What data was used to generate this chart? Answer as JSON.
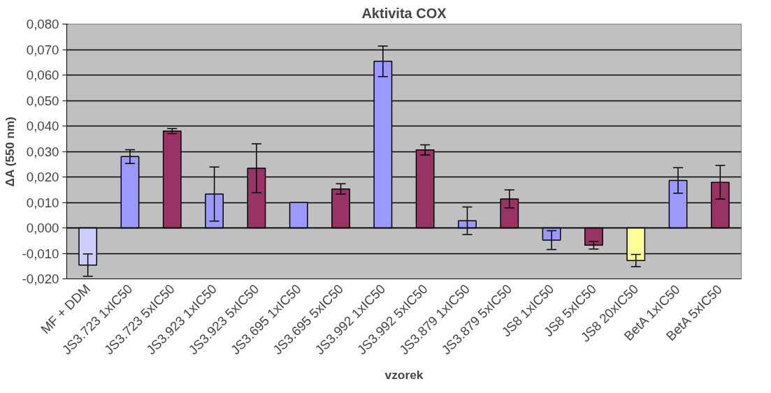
{
  "chart_data": {
    "type": "bar",
    "title": "Aktivita COX",
    "xlabel": "vzorek",
    "ylabel": "ΔA (550 nm)",
    "categories": [
      "MF + DDM",
      "JS3.723 1xIC50",
      "JS3.723 5xIC50",
      "JS3.923 1xIC50",
      "JS3.923 5xIC50",
      "JS3.695 1xIC50",
      "JS3.695 5xIC50",
      "JS3.992 1xIC50",
      "JS3.992 5xIC50",
      "JS3.879 1xIC50",
      "JS3.879 5xIC50",
      "JS8 1xIC50",
      "JS8 5xIC50",
      "JS8 20xIC50",
      "BetA 1xIC50",
      "BetA 5xIC50"
    ],
    "values": [
      -0.0146,
      0.028,
      0.038,
      0.0133,
      0.0234,
      0.01,
      0.0153,
      0.0654,
      0.0306,
      0.0028,
      0.0114,
      -0.0048,
      -0.0068,
      -0.0128,
      0.0186,
      0.0179
    ],
    "errors": [
      0.0044,
      0.0027,
      0.001,
      0.0106,
      0.0096,
      null,
      0.002,
      0.006,
      0.002,
      0.0054,
      0.0035,
      0.0037,
      0.0015,
      0.0024,
      0.005,
      0.0066
    ],
    "colors": [
      "#ccccff",
      "#9999ff",
      "#993366",
      "#9999ff",
      "#993366",
      "#9999ff",
      "#993366",
      "#9999ff",
      "#993366",
      "#9999ff",
      "#993366",
      "#9999ff",
      "#993366",
      "#ffff99",
      "#9999ff",
      "#993366"
    ],
    "ylim": [
      -0.02,
      0.08
    ],
    "yticks": [
      {
        "value": -0.02,
        "label": "-0,020"
      },
      {
        "value": -0.01,
        "label": "-0,010"
      },
      {
        "value": 0,
        "label": "0,000"
      },
      {
        "value": 0.01,
        "label": "0,010"
      },
      {
        "value": 0.02,
        "label": "0,020"
      },
      {
        "value": 0.03,
        "label": "0,030"
      },
      {
        "value": 0.04,
        "label": "0,040"
      },
      {
        "value": 0.05,
        "label": "0,050"
      },
      {
        "value": 0.06,
        "label": "0,060"
      },
      {
        "value": 0.07,
        "label": "0,070"
      },
      {
        "value": 0.08,
        "label": "0,080"
      }
    ],
    "grid": "y"
  }
}
